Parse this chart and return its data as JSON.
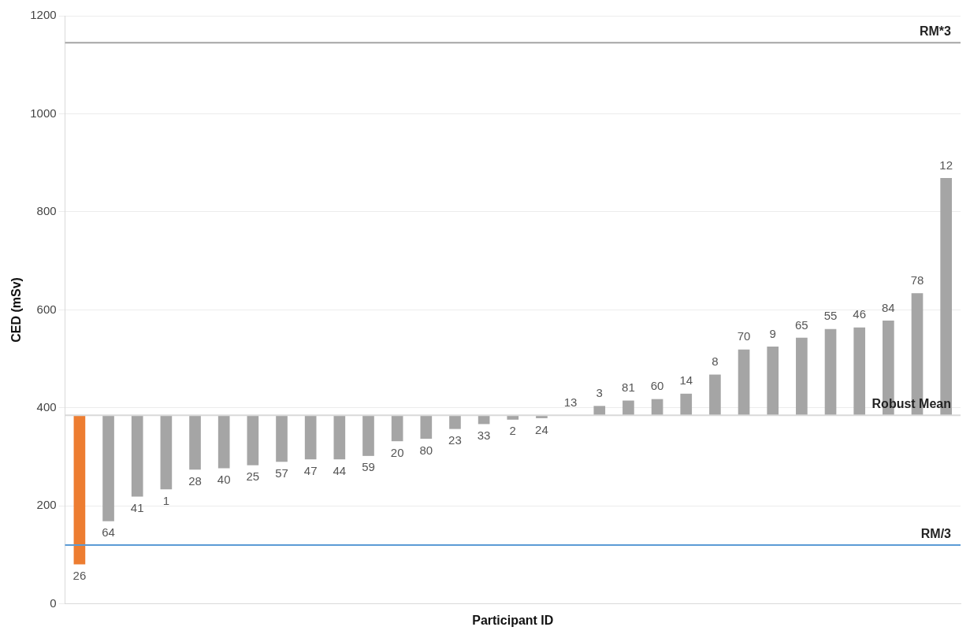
{
  "chart_data": {
    "type": "bar",
    "xlabel": "Participant ID",
    "ylabel": "CED (mSv)",
    "categories": [
      "26",
      "64",
      "41",
      "1",
      "28",
      "40",
      "25",
      "57",
      "47",
      "44",
      "59",
      "20",
      "80",
      "23",
      "33",
      "2",
      "24",
      "13",
      "3",
      "81",
      "60",
      "14",
      "8",
      "70",
      "9",
      "65",
      "55",
      "46",
      "84",
      "78",
      "12"
    ],
    "base": [
      385,
      385,
      385,
      385,
      385,
      385,
      385,
      385,
      385,
      385,
      385,
      385,
      385,
      385,
      385,
      385,
      385,
      null,
      385,
      385,
      385,
      385,
      385,
      385,
      385,
      385,
      385,
      385,
      385,
      385,
      385
    ],
    "values": [
      -304,
      -216,
      -166,
      -151,
      -111,
      -108,
      -102,
      -95,
      -90,
      -90,
      -83,
      -53,
      -48,
      -28,
      -18,
      -9,
      -6,
      null,
      19,
      30,
      33,
      44,
      83,
      134,
      140,
      158,
      176,
      179,
      193,
      249,
      484
    ],
    "colors": [
      "#ed7d31",
      "#a5a5a5",
      "#a5a5a5",
      "#a5a5a5",
      "#a5a5a5",
      "#a5a5a5",
      "#a5a5a5",
      "#a5a5a5",
      "#a5a5a5",
      "#a5a5a5",
      "#a5a5a5",
      "#a5a5a5",
      "#a5a5a5",
      "#a5a5a5",
      "#a5a5a5",
      "#a5a5a5",
      "#a5a5a5",
      "#a5a5a5",
      "#a5a5a5",
      "#a5a5a5",
      "#a5a5a5",
      "#a5a5a5",
      "#a5a5a5",
      "#a5a5a5",
      "#a5a5a5",
      "#a5a5a5",
      "#a5a5a5",
      "#a5a5a5",
      "#a5a5a5",
      "#a5a5a5",
      "#a5a5a5"
    ],
    "ylim": [
      0,
      1200
    ],
    "yticks": [
      0,
      200,
      400,
      600,
      800,
      1000,
      1200
    ],
    "grid": "y",
    "tick_labels": "y",
    "legend": false,
    "ref_lines": [
      {
        "axis": "y",
        "value": 1145,
        "label": "RM*3",
        "color": "#a5a5a5"
      },
      {
        "axis": "y",
        "value": 385,
        "label": "Robust Mean",
        "color": "#d9d9d9"
      },
      {
        "axis": "y",
        "value": 120,
        "label": "RM/3",
        "color": "#5b9bd5"
      }
    ]
  }
}
